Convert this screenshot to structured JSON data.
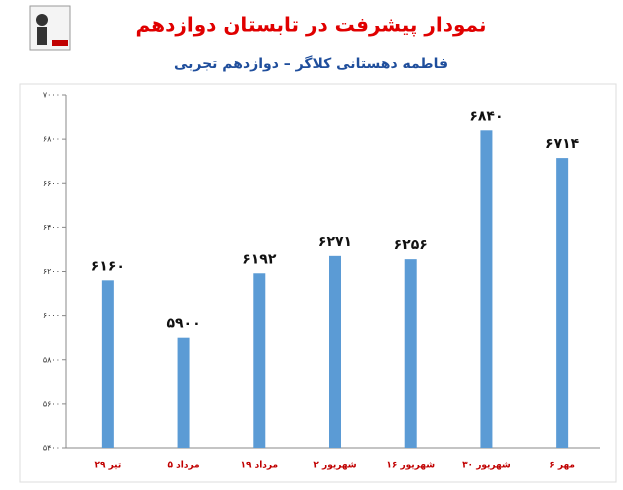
{
  "chart_data": {
    "type": "bar",
    "title": "نمودار پیشرفت در تابستان دوازدهم",
    "subtitle": "فاطمه دهستانی کلاگر – دوازدهم تجربی",
    "categories": [
      "۲۹ تیر",
      "۵ مرداد",
      "۱۹ مرداد",
      "۲ شهریور",
      "۱۶ شهریور",
      "۳۰ شهریور",
      "۶ مهر"
    ],
    "values": [
      6160,
      5900,
      6192,
      6271,
      6256,
      6840,
      6714
    ],
    "value_labels": [
      "۶۱۶۰",
      "۵۹۰۰",
      "۶۱۹۲",
      "۶۲۷۱",
      "۶۲۵۶",
      "۶۸۴۰",
      "۶۷۱۴"
    ],
    "color": "#5b9bd5",
    "ylim": [
      5400,
      7000
    ],
    "yticks": [
      {
        "value": 5400,
        "label": "۵۴۰۰"
      },
      {
        "value": 5600,
        "label": "۵۶۰۰"
      },
      {
        "value": 5800,
        "label": "۵۸۰۰"
      },
      {
        "value": 6000,
        "label": "۶۰۰۰"
      },
      {
        "value": 6200,
        "label": "۶۲۰۰"
      },
      {
        "value": 6400,
        "label": "۶۴۰۰"
      },
      {
        "value": 6600,
        "label": "۶۶۰۰"
      },
      {
        "value": 6800,
        "label": "۶۸۰۰"
      },
      {
        "value": 7000,
        "label": "۷۰۰۰"
      }
    ],
    "grid": false
  }
}
